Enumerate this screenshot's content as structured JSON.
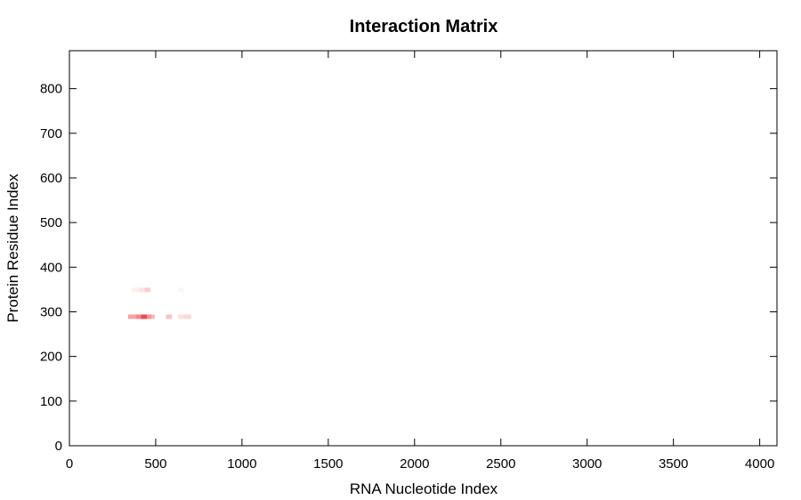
{
  "chart_data": {
    "type": "heatmap",
    "title": "Interaction Matrix",
    "xlabel": "RNA Nucleotide Index",
    "ylabel": "Protein Residue Index",
    "xlim": [
      0,
      4100
    ],
    "ylim": [
      0,
      885
    ],
    "xticks": [
      0,
      500,
      1000,
      1500,
      2000,
      2500,
      3000,
      3500,
      4000
    ],
    "yticks": [
      0,
      100,
      200,
      300,
      400,
      500,
      600,
      700,
      800
    ],
    "grid": false,
    "color": "#e8383f",
    "cells": [
      {
        "x": 340,
        "y": 284,
        "w": 45,
        "h": 10,
        "v": 0.45
      },
      {
        "x": 385,
        "y": 284,
        "w": 30,
        "h": 10,
        "v": 0.6
      },
      {
        "x": 415,
        "y": 284,
        "w": 35,
        "h": 10,
        "v": 0.9
      },
      {
        "x": 450,
        "y": 284,
        "w": 25,
        "h": 10,
        "v": 0.55
      },
      {
        "x": 475,
        "y": 284,
        "w": 20,
        "h": 10,
        "v": 0.35
      },
      {
        "x": 560,
        "y": 284,
        "w": 35,
        "h": 10,
        "v": 0.3
      },
      {
        "x": 630,
        "y": 284,
        "w": 30,
        "h": 10,
        "v": 0.15
      },
      {
        "x": 660,
        "y": 284,
        "w": 45,
        "h": 10,
        "v": 0.2
      },
      {
        "x": 360,
        "y": 344,
        "w": 45,
        "h": 10,
        "v": 0.08
      },
      {
        "x": 405,
        "y": 344,
        "w": 30,
        "h": 10,
        "v": 0.15
      },
      {
        "x": 435,
        "y": 344,
        "w": 35,
        "h": 10,
        "v": 0.25
      },
      {
        "x": 630,
        "y": 344,
        "w": 35,
        "h": 10,
        "v": 0.05
      }
    ]
  }
}
